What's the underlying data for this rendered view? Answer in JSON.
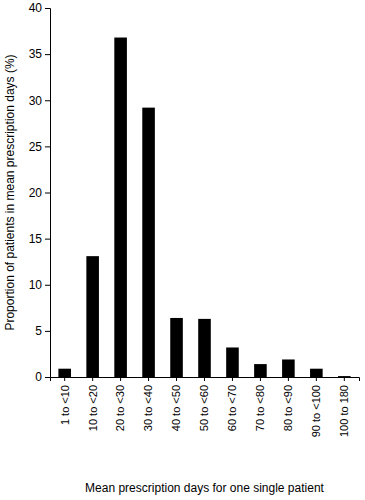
{
  "chart_data": {
    "type": "bar",
    "categories": [
      "1 to <10",
      "10 to <20",
      "20 to <30",
      "30 to <40",
      "40 to <50",
      "50 to <60",
      "60 to <70",
      "70 to <80",
      "80 to <90",
      "90 to <100",
      "100 to 180"
    ],
    "values": [
      0.9,
      13.1,
      36.8,
      29.2,
      6.4,
      6.3,
      3.2,
      1.4,
      1.9,
      0.9,
      0.1
    ],
    "color": "#000000",
    "x_label": "Mean prescription days for one single patient",
    "y_label": "Proportion of patients in mean prescription days (%)",
    "ylim": [
      0,
      40
    ],
    "yticks": [
      0,
      5,
      10,
      15,
      20,
      25,
      30,
      35,
      40
    ],
    "grid": false
  }
}
